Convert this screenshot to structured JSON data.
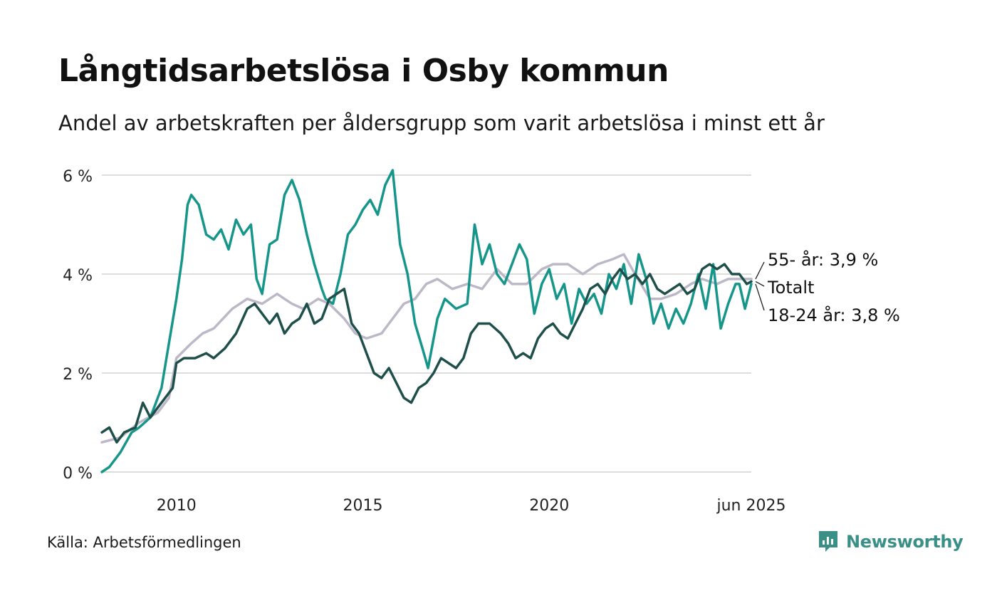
{
  "title": "Långtidsarbetslösa i Osby kommun",
  "subtitle": "Andel av arbetskraften per åldersgrupp som varit arbetslösa i minst ett år",
  "source": "Källa: Arbetsförmedlingen",
  "logo": {
    "text": "Newsworthy",
    "icon": "newsworthy-chart-icon"
  },
  "colors": {
    "young": "#16968a",
    "total": "#1f4f4a",
    "old": "#bdb8c8",
    "grid": "#dddddd"
  },
  "chart_data": {
    "type": "line",
    "y_ticks": [
      "0 %",
      "2 %",
      "4 %",
      "6 %"
    ],
    "y_tick_values": [
      0,
      2,
      4,
      6
    ],
    "ylim": [
      0,
      6
    ],
    "xlim": [
      2008.0,
      2025.42
    ],
    "x_ticks": [
      "2010",
      "2015",
      "2020",
      "jun 2025"
    ],
    "x_tick_values": [
      2010,
      2015,
      2020,
      2025.42
    ],
    "grid": true,
    "series": [
      {
        "key": "old",
        "name": "55- år",
        "end_label": "55- år: 3,9 %",
        "points": [
          [
            2008.0,
            0.6
          ],
          [
            2008.5,
            0.7
          ],
          [
            2009.0,
            1.0
          ],
          [
            2009.5,
            1.2
          ],
          [
            2009.8,
            1.5
          ],
          [
            2010.0,
            2.3
          ],
          [
            2010.4,
            2.6
          ],
          [
            2010.7,
            2.8
          ],
          [
            2011.0,
            2.9
          ],
          [
            2011.5,
            3.3
          ],
          [
            2011.9,
            3.5
          ],
          [
            2012.3,
            3.4
          ],
          [
            2012.7,
            3.6
          ],
          [
            2012.9,
            3.5
          ],
          [
            2013.1,
            3.4
          ],
          [
            2013.4,
            3.3
          ],
          [
            2013.8,
            3.5
          ],
          [
            2014.1,
            3.4
          ],
          [
            2014.5,
            3.1
          ],
          [
            2014.8,
            2.8
          ],
          [
            2015.1,
            2.7
          ],
          [
            2015.5,
            2.8
          ],
          [
            2015.8,
            3.1
          ],
          [
            2016.1,
            3.4
          ],
          [
            2016.4,
            3.5
          ],
          [
            2016.7,
            3.8
          ],
          [
            2017.0,
            3.9
          ],
          [
            2017.4,
            3.7
          ],
          [
            2017.8,
            3.8
          ],
          [
            2018.2,
            3.7
          ],
          [
            2018.6,
            4.1
          ],
          [
            2019.0,
            3.8
          ],
          [
            2019.4,
            3.8
          ],
          [
            2019.8,
            4.1
          ],
          [
            2020.1,
            4.2
          ],
          [
            2020.5,
            4.2
          ],
          [
            2020.9,
            4.0
          ],
          [
            2021.3,
            4.2
          ],
          [
            2021.7,
            4.3
          ],
          [
            2022.0,
            4.4
          ],
          [
            2022.3,
            4.0
          ],
          [
            2022.7,
            3.5
          ],
          [
            2023.0,
            3.5
          ],
          [
            2023.4,
            3.6
          ],
          [
            2023.8,
            3.8
          ],
          [
            2024.1,
            3.9
          ],
          [
            2024.5,
            3.8
          ],
          [
            2024.8,
            3.9
          ],
          [
            2025.1,
            3.9
          ],
          [
            2025.42,
            3.9
          ]
        ]
      },
      {
        "key": "young",
        "name": "18-24 år",
        "end_label": "18-24 år: 3,8 %",
        "points": [
          [
            2008.0,
            0.0
          ],
          [
            2008.2,
            0.1
          ],
          [
            2008.5,
            0.4
          ],
          [
            2008.8,
            0.8
          ],
          [
            2009.0,
            0.9
          ],
          [
            2009.3,
            1.1
          ],
          [
            2009.6,
            1.7
          ],
          [
            2009.8,
            2.6
          ],
          [
            2010.0,
            3.5
          ],
          [
            2010.15,
            4.3
          ],
          [
            2010.3,
            5.4
          ],
          [
            2010.4,
            5.6
          ],
          [
            2010.6,
            5.4
          ],
          [
            2010.8,
            4.8
          ],
          [
            2011.0,
            4.7
          ],
          [
            2011.2,
            4.9
          ],
          [
            2011.4,
            4.5
          ],
          [
            2011.6,
            5.1
          ],
          [
            2011.8,
            4.8
          ],
          [
            2012.0,
            5.0
          ],
          [
            2012.15,
            3.9
          ],
          [
            2012.3,
            3.6
          ],
          [
            2012.5,
            4.6
          ],
          [
            2012.7,
            4.7
          ],
          [
            2012.9,
            5.6
          ],
          [
            2013.1,
            5.9
          ],
          [
            2013.3,
            5.5
          ],
          [
            2013.5,
            4.8
          ],
          [
            2013.7,
            4.2
          ],
          [
            2013.9,
            3.7
          ],
          [
            2014.0,
            3.5
          ],
          [
            2014.2,
            3.4
          ],
          [
            2014.4,
            4.0
          ],
          [
            2014.6,
            4.8
          ],
          [
            2014.8,
            5.0
          ],
          [
            2015.0,
            5.3
          ],
          [
            2015.2,
            5.5
          ],
          [
            2015.4,
            5.2
          ],
          [
            2015.6,
            5.8
          ],
          [
            2015.8,
            6.1
          ],
          [
            2016.0,
            4.6
          ],
          [
            2016.2,
            4.0
          ],
          [
            2016.4,
            3.0
          ],
          [
            2016.6,
            2.5
          ],
          [
            2016.75,
            2.1
          ],
          [
            2017.0,
            3.1
          ],
          [
            2017.2,
            3.5
          ],
          [
            2017.5,
            3.3
          ],
          [
            2017.8,
            3.4
          ],
          [
            2018.0,
            5.0
          ],
          [
            2018.2,
            4.2
          ],
          [
            2018.4,
            4.6
          ],
          [
            2018.6,
            4.0
          ],
          [
            2018.8,
            3.8
          ],
          [
            2019.0,
            4.2
          ],
          [
            2019.2,
            4.6
          ],
          [
            2019.4,
            4.3
          ],
          [
            2019.6,
            3.2
          ],
          [
            2019.8,
            3.8
          ],
          [
            2020.0,
            4.1
          ],
          [
            2020.2,
            3.5
          ],
          [
            2020.4,
            3.8
          ],
          [
            2020.6,
            3.0
          ],
          [
            2020.8,
            3.7
          ],
          [
            2021.0,
            3.4
          ],
          [
            2021.2,
            3.6
          ],
          [
            2021.4,
            3.2
          ],
          [
            2021.6,
            4.0
          ],
          [
            2021.8,
            3.7
          ],
          [
            2022.0,
            4.2
          ],
          [
            2022.2,
            3.4
          ],
          [
            2022.4,
            4.4
          ],
          [
            2022.6,
            3.9
          ],
          [
            2022.8,
            3.0
          ],
          [
            2023.0,
            3.4
          ],
          [
            2023.2,
            2.9
          ],
          [
            2023.4,
            3.3
          ],
          [
            2023.6,
            3.0
          ],
          [
            2023.8,
            3.4
          ],
          [
            2024.0,
            4.0
          ],
          [
            2024.2,
            3.3
          ],
          [
            2024.4,
            4.2
          ],
          [
            2024.6,
            2.9
          ],
          [
            2024.8,
            3.4
          ],
          [
            2025.0,
            3.8
          ],
          [
            2025.1,
            3.8
          ],
          [
            2025.25,
            3.3
          ],
          [
            2025.42,
            3.8
          ]
        ]
      },
      {
        "key": "total",
        "name": "Totalt",
        "end_label": "Totalt",
        "points": [
          [
            2008.0,
            0.8
          ],
          [
            2008.2,
            0.9
          ],
          [
            2008.4,
            0.6
          ],
          [
            2008.6,
            0.8
          ],
          [
            2008.9,
            0.9
          ],
          [
            2009.1,
            1.4
          ],
          [
            2009.3,
            1.1
          ],
          [
            2009.5,
            1.3
          ],
          [
            2009.7,
            1.5
          ],
          [
            2009.9,
            1.7
          ],
          [
            2010.0,
            2.2
          ],
          [
            2010.2,
            2.3
          ],
          [
            2010.5,
            2.3
          ],
          [
            2010.8,
            2.4
          ],
          [
            2011.0,
            2.3
          ],
          [
            2011.3,
            2.5
          ],
          [
            2011.6,
            2.8
          ],
          [
            2011.9,
            3.3
          ],
          [
            2012.1,
            3.4
          ],
          [
            2012.3,
            3.2
          ],
          [
            2012.5,
            3.0
          ],
          [
            2012.7,
            3.2
          ],
          [
            2012.9,
            2.8
          ],
          [
            2013.1,
            3.0
          ],
          [
            2013.3,
            3.1
          ],
          [
            2013.5,
            3.4
          ],
          [
            2013.7,
            3.0
          ],
          [
            2013.9,
            3.1
          ],
          [
            2014.1,
            3.5
          ],
          [
            2014.3,
            3.6
          ],
          [
            2014.5,
            3.7
          ],
          [
            2014.7,
            3.0
          ],
          [
            2014.9,
            2.8
          ],
          [
            2015.1,
            2.4
          ],
          [
            2015.3,
            2.0
          ],
          [
            2015.5,
            1.9
          ],
          [
            2015.7,
            2.1
          ],
          [
            2015.9,
            1.8
          ],
          [
            2016.1,
            1.5
          ],
          [
            2016.3,
            1.4
          ],
          [
            2016.5,
            1.7
          ],
          [
            2016.7,
            1.8
          ],
          [
            2016.9,
            2.0
          ],
          [
            2017.1,
            2.3
          ],
          [
            2017.3,
            2.2
          ],
          [
            2017.5,
            2.1
          ],
          [
            2017.7,
            2.3
          ],
          [
            2017.9,
            2.8
          ],
          [
            2018.1,
            3.0
          ],
          [
            2018.4,
            3.0
          ],
          [
            2018.7,
            2.8
          ],
          [
            2018.9,
            2.6
          ],
          [
            2019.1,
            2.3
          ],
          [
            2019.3,
            2.4
          ],
          [
            2019.5,
            2.3
          ],
          [
            2019.7,
            2.7
          ],
          [
            2019.9,
            2.9
          ],
          [
            2020.1,
            3.0
          ],
          [
            2020.3,
            2.8
          ],
          [
            2020.5,
            2.7
          ],
          [
            2020.7,
            3.0
          ],
          [
            2020.9,
            3.3
          ],
          [
            2021.1,
            3.7
          ],
          [
            2021.3,
            3.8
          ],
          [
            2021.5,
            3.6
          ],
          [
            2021.7,
            3.9
          ],
          [
            2021.9,
            4.1
          ],
          [
            2022.1,
            3.9
          ],
          [
            2022.3,
            4.0
          ],
          [
            2022.5,
            3.8
          ],
          [
            2022.7,
            4.0
          ],
          [
            2022.9,
            3.7
          ],
          [
            2023.1,
            3.6
          ],
          [
            2023.3,
            3.7
          ],
          [
            2023.5,
            3.8
          ],
          [
            2023.7,
            3.6
          ],
          [
            2023.9,
            3.7
          ],
          [
            2024.1,
            4.1
          ],
          [
            2024.3,
            4.2
          ],
          [
            2024.5,
            4.1
          ],
          [
            2024.7,
            4.2
          ],
          [
            2024.9,
            4.0
          ],
          [
            2025.1,
            4.0
          ],
          [
            2025.3,
            3.8
          ],
          [
            2025.42,
            3.85
          ]
        ]
      }
    ]
  }
}
